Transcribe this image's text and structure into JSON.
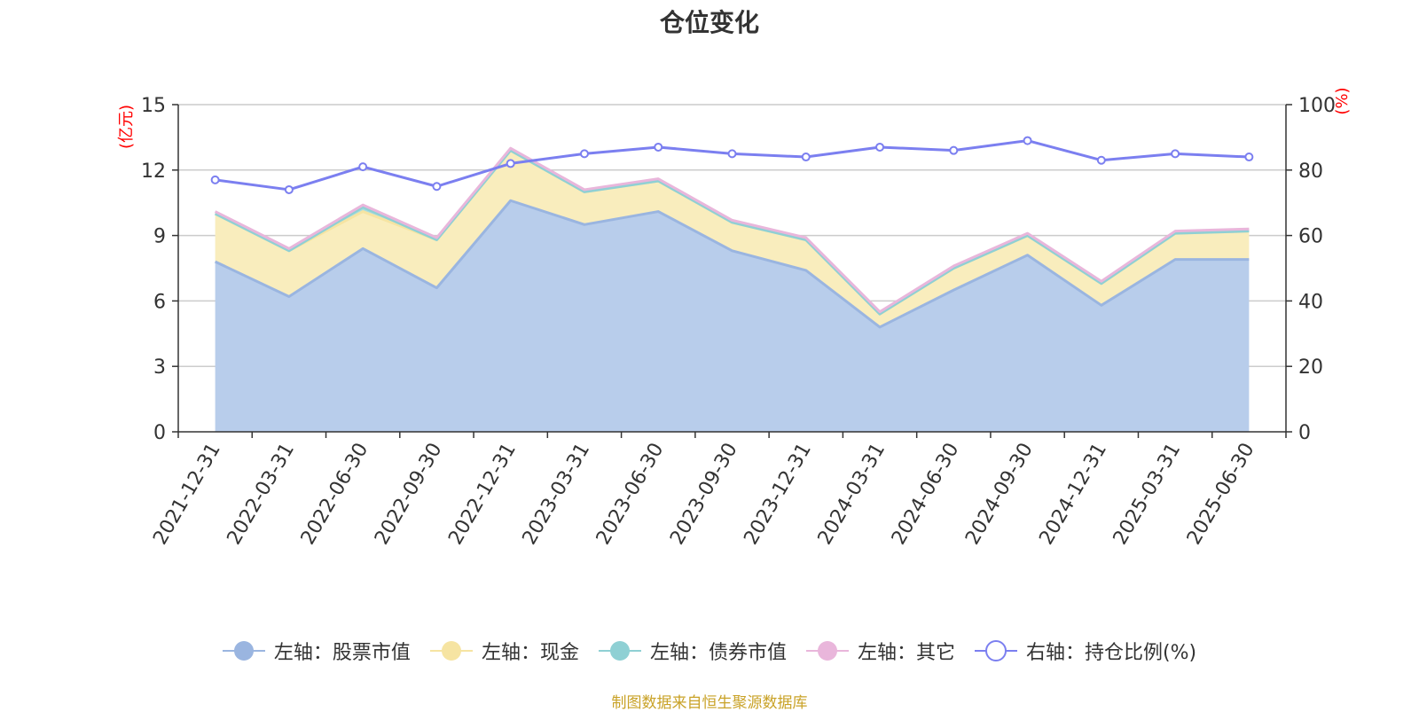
{
  "chart_data": {
    "type": "area",
    "title": "仓位变化",
    "x": [
      "2021-12-31",
      "2022-03-31",
      "2022-06-30",
      "2022-09-30",
      "2022-12-31",
      "2023-03-31",
      "2023-06-30",
      "2023-09-30",
      "2023-12-31",
      "2024-03-31",
      "2024-06-30",
      "2024-09-30",
      "2024-12-31",
      "2025-03-31",
      "2025-06-30"
    ],
    "left_axis": {
      "unit_label": "(亿元)",
      "ylim": [
        0,
        15
      ],
      "ticks": [
        0,
        3,
        6,
        9,
        12,
        15
      ]
    },
    "right_axis": {
      "unit_label": "(%)",
      "ylim": [
        0,
        100
      ],
      "ticks": [
        0,
        20,
        40,
        60,
        80,
        100
      ]
    },
    "series": [
      {
        "name": "左轴：股票市值",
        "axis": "left",
        "stacked": true,
        "color": "#9ab5e0",
        "fill": "#b8cdeb",
        "values": [
          7.8,
          6.2,
          8.4,
          6.6,
          10.6,
          9.5,
          10.1,
          8.3,
          7.4,
          4.8,
          6.5,
          8.1,
          5.8,
          7.9,
          7.9
        ]
      },
      {
        "name": "左轴：现金",
        "axis": "left",
        "stacked": true,
        "color": "#f6e4a2",
        "fill": "#f9edbd",
        "values": [
          2.2,
          2.1,
          1.7,
          2.2,
          2.3,
          1.5,
          1.4,
          1.3,
          1.4,
          0.6,
          1.0,
          0.9,
          1.0,
          1.2,
          1.3
        ]
      },
      {
        "name": "左轴：债券市值",
        "axis": "left",
        "stacked": true,
        "color": "#8fd0d4",
        "fill": "#a8dde0",
        "values": [
          0,
          0,
          0.2,
          0,
          0,
          0,
          0,
          0,
          0,
          0,
          0,
          0,
          0,
          0,
          0
        ]
      },
      {
        "name": "左轴：其它",
        "axis": "left",
        "stacked": true,
        "color": "#e9b6db",
        "fill": "#f0c9e4",
        "values": [
          0.1,
          0.1,
          0.1,
          0.1,
          0.1,
          0.1,
          0.1,
          0.1,
          0.1,
          0.1,
          0.1,
          0.1,
          0.1,
          0.1,
          0.1
        ]
      },
      {
        "name": "右轴：持仓比例(%)",
        "axis": "right",
        "stacked": false,
        "color": "#7b7ff0",
        "values": [
          77,
          74,
          81,
          75,
          82,
          85,
          87,
          85,
          84,
          87,
          86,
          89,
          83,
          85,
          84
        ]
      }
    ],
    "grid": true,
    "legend_position": "bottom"
  },
  "source_text": "制图数据来自恒生聚源数据库"
}
